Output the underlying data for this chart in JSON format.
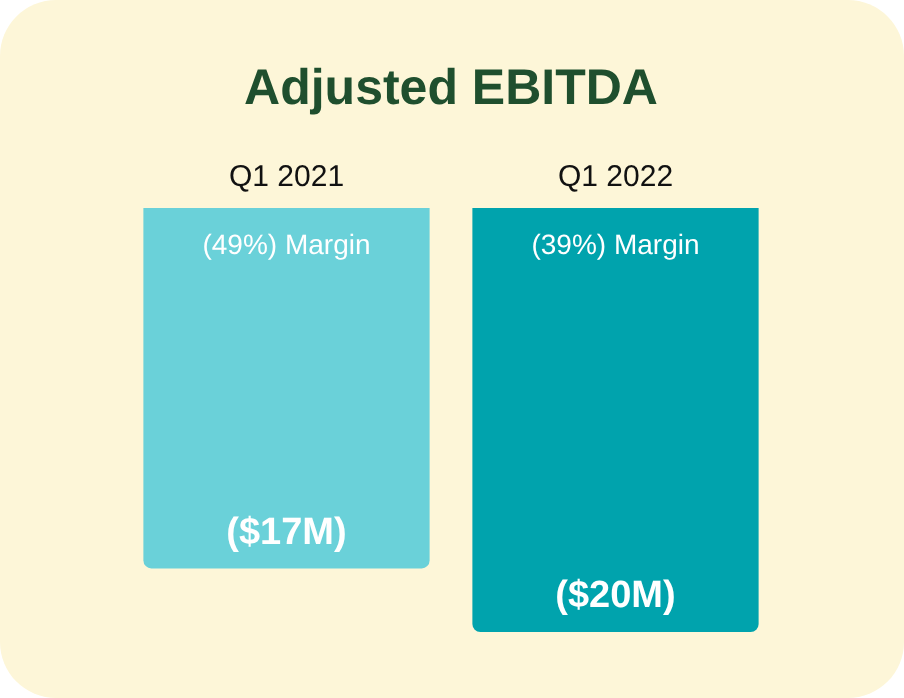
{
  "chart_data": {
    "type": "bar",
    "title": "Adjusted EBITDA",
    "categories": [
      "Q1 2021",
      "Q1 2022"
    ],
    "values": [
      -17,
      -20
    ],
    "colors": [
      "#6ad1d9",
      "#00a3ad"
    ],
    "value_labels": [
      "($17M)",
      "($20M)"
    ],
    "annotations": [
      "(49%) Margin",
      "(39%) Margin"
    ],
    "grid": false,
    "legend": false
  }
}
